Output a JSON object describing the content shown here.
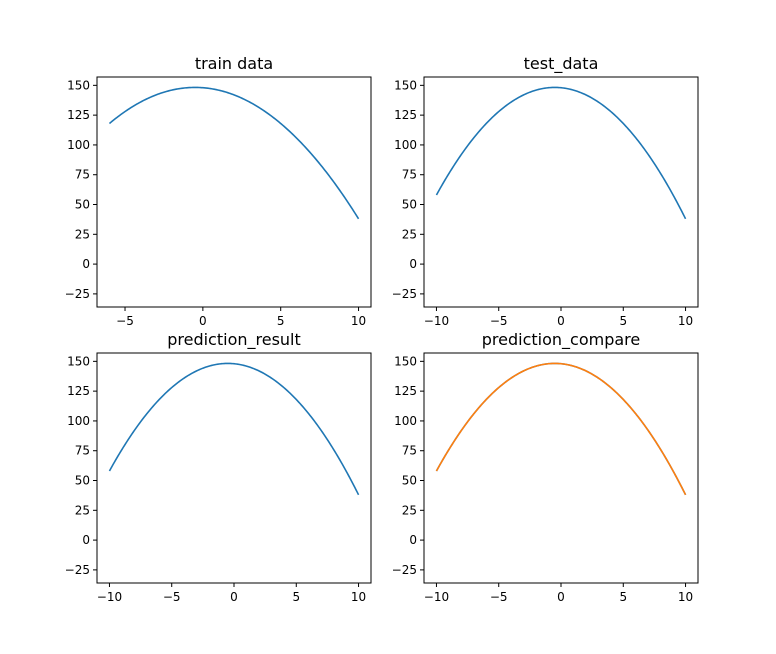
{
  "chart_data": [
    {
      "type": "line",
      "title": "train data",
      "xlim": [
        -6.8,
        10.8
      ],
      "ylim": [
        -36,
        157
      ],
      "xticks": [
        -5,
        0,
        5,
        10
      ],
      "yticks": [
        -25,
        0,
        25,
        50,
        75,
        100,
        125,
        150
      ],
      "grid": false,
      "series": [
        {
          "color": "#1f77b4",
          "formula": "-(x+0.5)^2 + 148.25",
          "x_range": [
            -6,
            10
          ]
        }
      ]
    },
    {
      "type": "line",
      "title": "test_data",
      "xlim": [
        -11,
        11
      ],
      "ylim": [
        -36,
        157
      ],
      "xticks": [
        -10,
        -5,
        0,
        5,
        10
      ],
      "yticks": [
        -25,
        0,
        25,
        50,
        75,
        100,
        125,
        150
      ],
      "grid": false,
      "series": [
        {
          "color": "#1f77b4",
          "formula": "-(x+0.5)^2 + 148.25",
          "x_range": [
            -10,
            10
          ]
        }
      ]
    },
    {
      "type": "line",
      "title": "prediction_result",
      "xlim": [
        -11,
        11
      ],
      "ylim": [
        -36,
        157
      ],
      "xticks": [
        -10,
        -5,
        0,
        5,
        10
      ],
      "yticks": [
        -25,
        0,
        25,
        50,
        75,
        100,
        125,
        150
      ],
      "grid": false,
      "series": [
        {
          "color": "#1f77b4",
          "formula": "-(x+0.5)^2 + 148.25",
          "x_range": [
            -10,
            10
          ]
        }
      ]
    },
    {
      "type": "line",
      "title": "prediction_compare",
      "xlim": [
        -11,
        11
      ],
      "ylim": [
        -36,
        157
      ],
      "xticks": [
        -10,
        -5,
        0,
        5,
        10
      ],
      "yticks": [
        -25,
        0,
        25,
        50,
        75,
        100,
        125,
        150
      ],
      "grid": false,
      "series": [
        {
          "color": "#1f77b4",
          "formula": "-(x+0.5)^2 + 148.25",
          "x_range": [
            -10,
            10
          ]
        },
        {
          "color": "#ff7f0e",
          "formula": "-(x+0.5)^2 + 148.25",
          "x_range": [
            -10,
            10
          ]
        }
      ]
    }
  ]
}
